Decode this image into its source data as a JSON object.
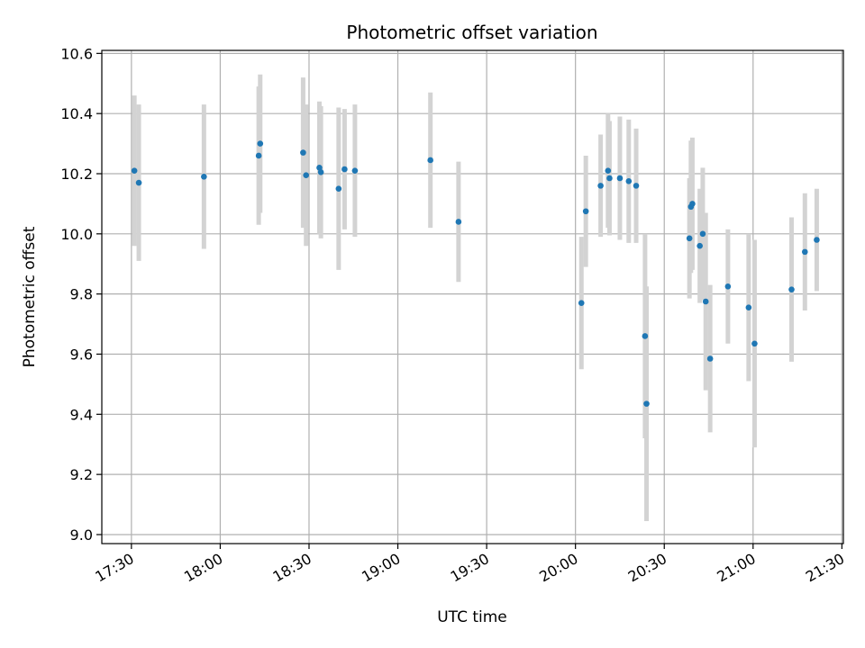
{
  "chart_data": {
    "type": "scatter",
    "title": "Photometric offset variation",
    "xlabel": "UTC time",
    "ylabel": "Photometric offset",
    "xlim": [
      "17:20:00",
      "21:30:30"
    ],
    "ylim": [
      8.97,
      10.61
    ],
    "x_ticks": [
      "17:30",
      "18:00",
      "18:30",
      "19:00",
      "19:30",
      "20:00",
      "20:30",
      "21:00",
      "21:30"
    ],
    "y_ticks": [
      9.0,
      9.2,
      9.4,
      9.6,
      9.8,
      10.0,
      10.2,
      10.4,
      10.6
    ],
    "y_tick_labels": [
      "9.0",
      "9.2",
      "9.4",
      "9.6",
      "9.8",
      "10.0",
      "10.2",
      "10.4",
      "10.6"
    ],
    "grid": true,
    "point_color": "#1f77b4",
    "errorbar_color": "#d3d3d3",
    "points": [
      {
        "time": "17:31:00",
        "value": 10.21,
        "err": 0.25
      },
      {
        "time": "17:32:30",
        "value": 10.17,
        "err": 0.26
      },
      {
        "time": "17:54:30",
        "value": 10.19,
        "err": 0.24
      },
      {
        "time": "18:13:00",
        "value": 10.26,
        "err": 0.23
      },
      {
        "time": "18:13:30",
        "value": 10.3,
        "err": 0.23
      },
      {
        "time": "18:28:00",
        "value": 10.27,
        "err": 0.25
      },
      {
        "time": "18:29:00",
        "value": 10.195,
        "err": 0.235
      },
      {
        "time": "18:33:30",
        "value": 10.22,
        "err": 0.22
      },
      {
        "time": "18:34:00",
        "value": 10.205,
        "err": 0.22
      },
      {
        "time": "18:40:00",
        "value": 10.15,
        "err": 0.27
      },
      {
        "time": "18:42:00",
        "value": 10.215,
        "err": 0.2
      },
      {
        "time": "18:45:30",
        "value": 10.21,
        "err": 0.22
      },
      {
        "time": "19:11:00",
        "value": 10.245,
        "err": 0.225
      },
      {
        "time": "19:20:30",
        "value": 10.04,
        "err": 0.2
      },
      {
        "time": "20:02:00",
        "value": 9.77,
        "err": 0.22
      },
      {
        "time": "20:03:30",
        "value": 10.075,
        "err": 0.185
      },
      {
        "time": "20:08:30",
        "value": 10.16,
        "err": 0.17
      },
      {
        "time": "20:11:00",
        "value": 10.21,
        "err": 0.19
      },
      {
        "time": "20:11:30",
        "value": 10.185,
        "err": 0.19
      },
      {
        "time": "20:15:00",
        "value": 10.185,
        "err": 0.205
      },
      {
        "time": "20:18:00",
        "value": 10.175,
        "err": 0.205
      },
      {
        "time": "20:20:30",
        "value": 10.16,
        "err": 0.19
      },
      {
        "time": "20:23:30",
        "value": 9.66,
        "err": 0.34
      },
      {
        "time": "20:24:00",
        "value": 9.435,
        "err": 0.39
      },
      {
        "time": "20:38:30",
        "value": 9.985,
        "err": 0.2
      },
      {
        "time": "20:39:00",
        "value": 10.09,
        "err": 0.22
      },
      {
        "time": "20:39:30",
        "value": 10.1,
        "err": 0.22
      },
      {
        "time": "20:42:00",
        "value": 9.96,
        "err": 0.19
      },
      {
        "time": "20:43:00",
        "value": 10.0,
        "err": 0.22
      },
      {
        "time": "20:44:00",
        "value": 9.775,
        "err": 0.295
      },
      {
        "time": "20:45:30",
        "value": 9.585,
        "err": 0.245
      },
      {
        "time": "20:51:30",
        "value": 9.825,
        "err": 0.19
      },
      {
        "time": "20:58:30",
        "value": 9.755,
        "err": 0.245
      },
      {
        "time": "21:00:30",
        "value": 9.635,
        "err": 0.345
      },
      {
        "time": "21:13:00",
        "value": 9.815,
        "err": 0.24
      },
      {
        "time": "21:17:30",
        "value": 9.94,
        "err": 0.195
      },
      {
        "time": "21:21:30",
        "value": 9.98,
        "err": 0.17
      }
    ]
  }
}
